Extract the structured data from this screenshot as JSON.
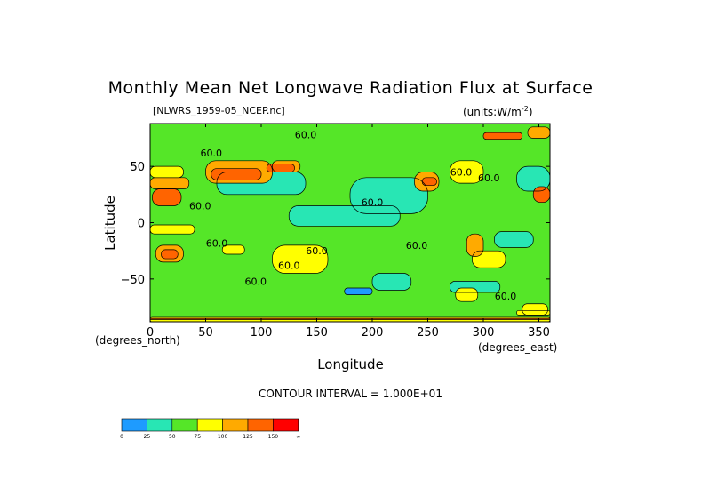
{
  "chart_data": {
    "type": "heatmap",
    "title": "Monthly Mean Net Longwave Radiation Flux at Surface",
    "subtitle_left": "[NLWRS_1959-05_NCEP.nc]",
    "subtitle_right": "(units:W/m",
    "subtitle_right_sup": "-2",
    "subtitle_right_end": ")",
    "xlabel": "Longitude",
    "xunit": "(degrees_east)",
    "ylabel": "Latitude",
    "yunit": "(degrees_north)",
    "xlim": [
      0,
      360
    ],
    "ylim": [
      -88,
      88
    ],
    "xticks": [
      "0",
      "50",
      "100",
      "150",
      "200",
      "250",
      "300",
      "350"
    ],
    "xtick_values": [
      0,
      50,
      100,
      150,
      200,
      250,
      300,
      350
    ],
    "yticks": [
      "50",
      "0",
      "−50"
    ],
    "ytick_values": [
      50,
      0,
      -50
    ],
    "contour_interval": "CONTOUR INTERVAL = 1.000E+01",
    "contour_labels": [
      {
        "text": "60.0",
        "lon": 140,
        "lat": 78
      },
      {
        "text": "60.0",
        "lon": 55,
        "lat": 62
      },
      {
        "text": "60.0",
        "lon": 280,
        "lat": 45
      },
      {
        "text": "60.0",
        "lon": 305,
        "lat": 40
      },
      {
        "text": "60.0",
        "lon": 45,
        "lat": 15
      },
      {
        "text": "60.0",
        "lon": 200,
        "lat": 18
      },
      {
        "text": "60.0",
        "lon": 240,
        "lat": -20
      },
      {
        "text": "60.0",
        "lon": 60,
        "lat": -18
      },
      {
        "text": "60.0",
        "lon": 150,
        "lat": -25
      },
      {
        "text": "60.0",
        "lon": 125,
        "lat": -38
      },
      {
        "text": "60.0",
        "lon": 95,
        "lat": -52
      },
      {
        "text": "60.0",
        "lon": 320,
        "lat": -65
      }
    ],
    "colorbar": {
      "ticks": [
        "0",
        "25",
        "50",
        "75",
        "100",
        "125",
        "150",
        "∞"
      ],
      "colors": [
        "#1e9bff",
        "#28e6b4",
        "#55e628",
        "#ffff00",
        "#ffaa00",
        "#ff6400",
        "#ff0000"
      ]
    },
    "regions": [
      {
        "level": 2,
        "lon": [
          0,
          360
        ],
        "lat": [
          -88,
          88
        ]
      },
      {
        "level": 1,
        "lon": [
          180,
          250
        ],
        "lat": [
          8,
          40
        ]
      },
      {
        "level": 1,
        "lon": [
          125,
          225
        ],
        "lat": [
          -3,
          15
        ]
      },
      {
        "level": 1,
        "lon": [
          60,
          140
        ],
        "lat": [
          25,
          45
        ]
      },
      {
        "level": 1,
        "lon": [
          330,
          360
        ],
        "lat": [
          28,
          50
        ]
      },
      {
        "level": 1,
        "lon": [
          310,
          345
        ],
        "lat": [
          -22,
          -8
        ]
      },
      {
        "level": 1,
        "lon": [
          200,
          235
        ],
        "lat": [
          -60,
          -45
        ]
      },
      {
        "level": 1,
        "lon": [
          270,
          315
        ],
        "lat": [
          -62,
          -52
        ]
      },
      {
        "level": 0,
        "lon": [
          175,
          200
        ],
        "lat": [
          -64,
          -58
        ]
      },
      {
        "level": 3,
        "lon": [
          110,
          160
        ],
        "lat": [
          -45,
          -20
        ]
      },
      {
        "level": 3,
        "lon": [
          65,
          85
        ],
        "lat": [
          -28,
          -20
        ]
      },
      {
        "level": 3,
        "lon": [
          0,
          40
        ],
        "lat": [
          -10,
          -2
        ]
      },
      {
        "level": 3,
        "lon": [
          275,
          295
        ],
        "lat": [
          -70,
          -58
        ]
      },
      {
        "level": 3,
        "lon": [
          335,
          358
        ],
        "lat": [
          -82,
          -72
        ]
      },
      {
        "level": 3,
        "lon": [
          0,
          30
        ],
        "lat": [
          40,
          50
        ]
      },
      {
        "level": 3,
        "lon": [
          270,
          300
        ],
        "lat": [
          35,
          55
        ]
      },
      {
        "level": 3,
        "lon": [
          290,
          320
        ],
        "lat": [
          -40,
          -25
        ]
      },
      {
        "level": 4,
        "lon": [
          0,
          35
        ],
        "lat": [
          30,
          40
        ]
      },
      {
        "level": 4,
        "lon": [
          50,
          110
        ],
        "lat": [
          35,
          55
        ]
      },
      {
        "level": 4,
        "lon": [
          110,
          135
        ],
        "lat": [
          45,
          55
        ]
      },
      {
        "level": 4,
        "lon": [
          238,
          260
        ],
        "lat": [
          28,
          45
        ]
      },
      {
        "level": 4,
        "lon": [
          5,
          30
        ],
        "lat": [
          -35,
          -20
        ]
      },
      {
        "level": 4,
        "lon": [
          285,
          300
        ],
        "lat": [
          -30,
          -10
        ]
      },
      {
        "level": 4,
        "lon": [
          340,
          360
        ],
        "lat": [
          75,
          85
        ]
      },
      {
        "level": 5,
        "lon": [
          2,
          28
        ],
        "lat": [
          15,
          30
        ]
      },
      {
        "level": 5,
        "lon": [
          55,
          100
        ],
        "lat": [
          38,
          48
        ]
      },
      {
        "level": 5,
        "lon": [
          105,
          130
        ],
        "lat": [
          45,
          52
        ]
      },
      {
        "level": 5,
        "lon": [
          245,
          258
        ],
        "lat": [
          33,
          40
        ]
      },
      {
        "level": 5,
        "lon": [
          345,
          360
        ],
        "lat": [
          18,
          32
        ]
      },
      {
        "level": 5,
        "lon": [
          10,
          25
        ],
        "lat": [
          -32,
          -24
        ]
      },
      {
        "level": 5,
        "lon": [
          300,
          335
        ],
        "lat": [
          74,
          80
        ]
      },
      {
        "level": 3,
        "lon": [
          0,
          360
        ],
        "lat": [
          -88,
          -84
        ]
      },
      {
        "level": 5,
        "lon": [
          0,
          360
        ],
        "lat": [
          -86,
          -85
        ]
      },
      {
        "level": 3,
        "lon": [
          330,
          360
        ],
        "lat": [
          -82,
          -78
        ]
      }
    ]
  }
}
